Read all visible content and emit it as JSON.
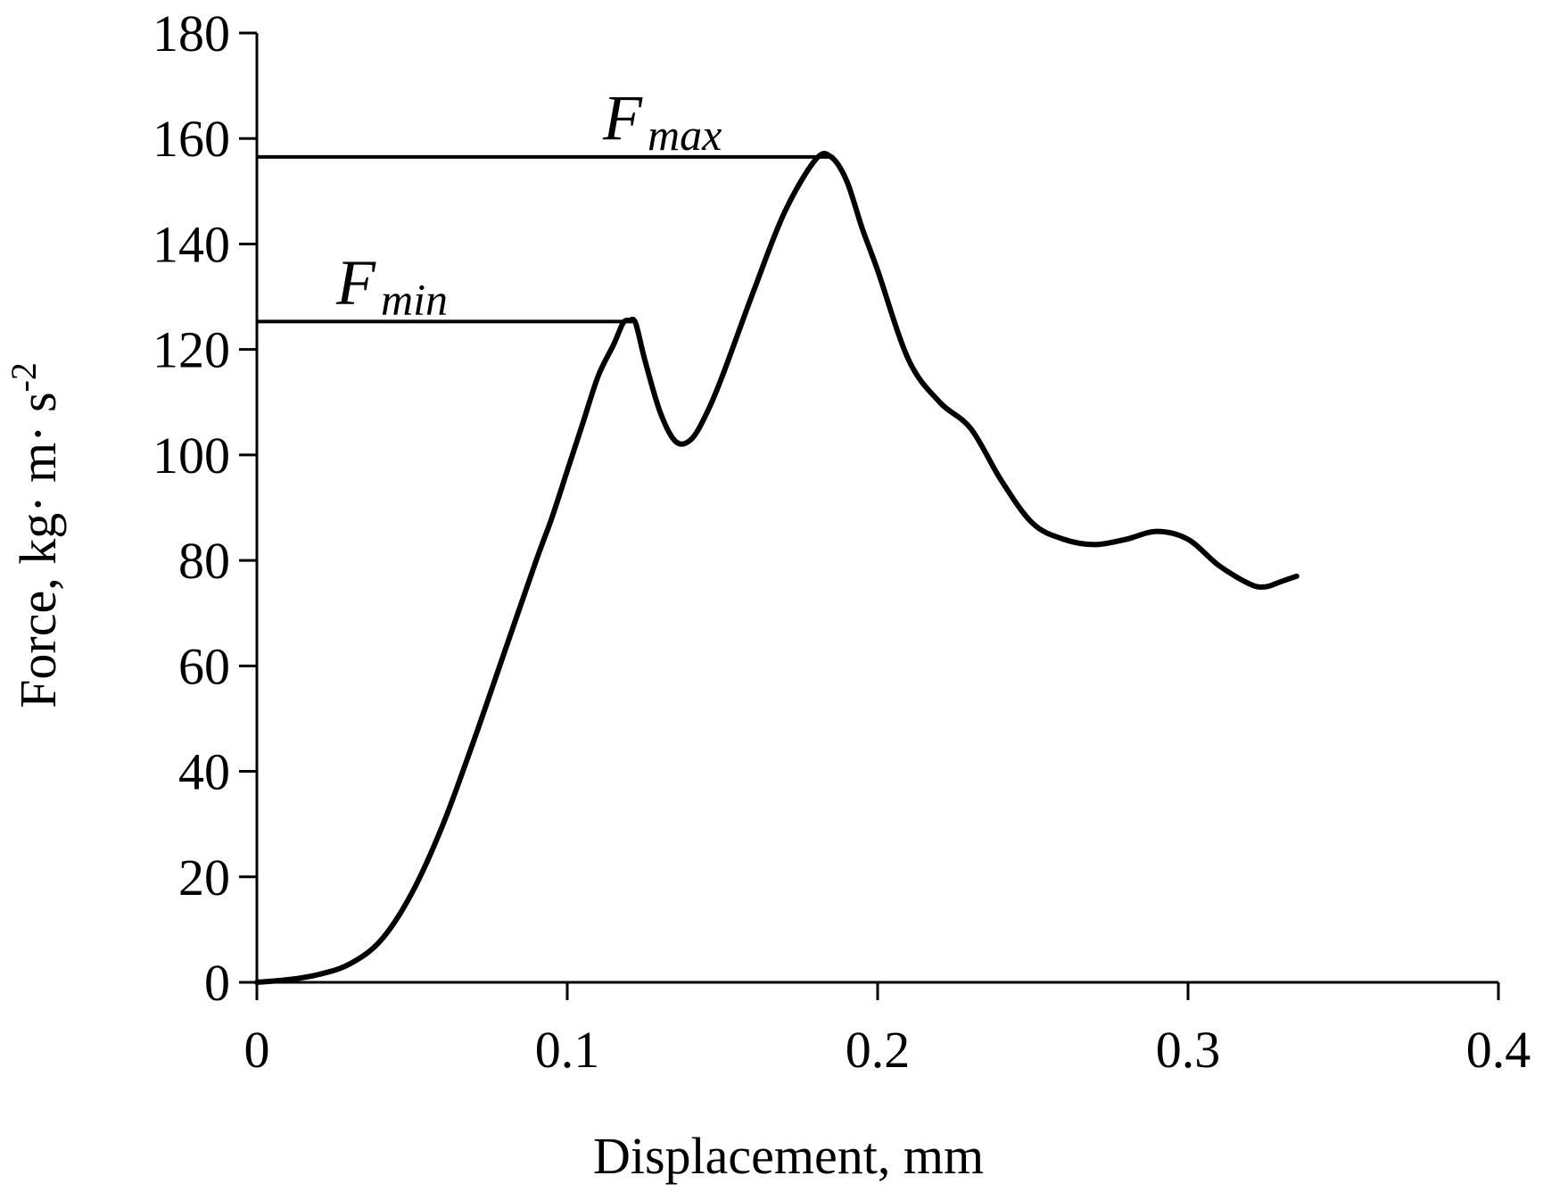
{
  "chart_data": {
    "type": "line",
    "xlabel": "Displacement, mm",
    "ylabel": "Force, kg· m· s",
    "ylabel_superscript": "-2",
    "xlim": [
      0,
      0.4
    ],
    "ylim": [
      0,
      180
    ],
    "x_ticks": [
      "0",
      "0.1",
      "0.2",
      "0.3",
      "0.4"
    ],
    "y_ticks": [
      "0",
      "20",
      "40",
      "60",
      "80",
      "100",
      "120",
      "140",
      "160",
      "180"
    ],
    "grid": false,
    "legend": "none",
    "line_color": "#000000",
    "series": [
      {
        "x": [
          0,
          0.01,
          0.02,
          0.03,
          0.04,
          0.05,
          0.06,
          0.07,
          0.08,
          0.09,
          0.095,
          0.1,
          0.105,
          0.11,
          0.115,
          0.118,
          0.12,
          0.122,
          0.125,
          0.13,
          0.135,
          0.14,
          0.145,
          0.15,
          0.16,
          0.17,
          0.18,
          0.185,
          0.19,
          0.195,
          0.2,
          0.21,
          0.22,
          0.23,
          0.24,
          0.25,
          0.26,
          0.27,
          0.28,
          0.29,
          0.3,
          0.31,
          0.32,
          0.325,
          0.33,
          0.335
        ],
        "y": [
          0,
          0.5,
          1.5,
          3.5,
          8,
          17,
          30,
          46,
          63,
          80,
          88,
          97,
          106,
          115,
          121,
          125,
          125.5,
          125,
          118,
          108,
          102.5,
          103,
          108,
          115,
          131,
          146,
          156,
          156.5,
          152,
          143,
          135,
          118,
          110,
          105,
          95,
          87,
          84,
          83,
          84,
          85.5,
          84,
          79,
          75.5,
          75,
          76,
          77
        ]
      }
    ],
    "reference_lines": [
      {
        "label_base": "F",
        "label_sub": "max",
        "y": 156.5,
        "x_end": 0.186
      },
      {
        "label_base": "F",
        "label_sub": "min",
        "y": 125.3,
        "x_end": 0.121
      }
    ]
  }
}
